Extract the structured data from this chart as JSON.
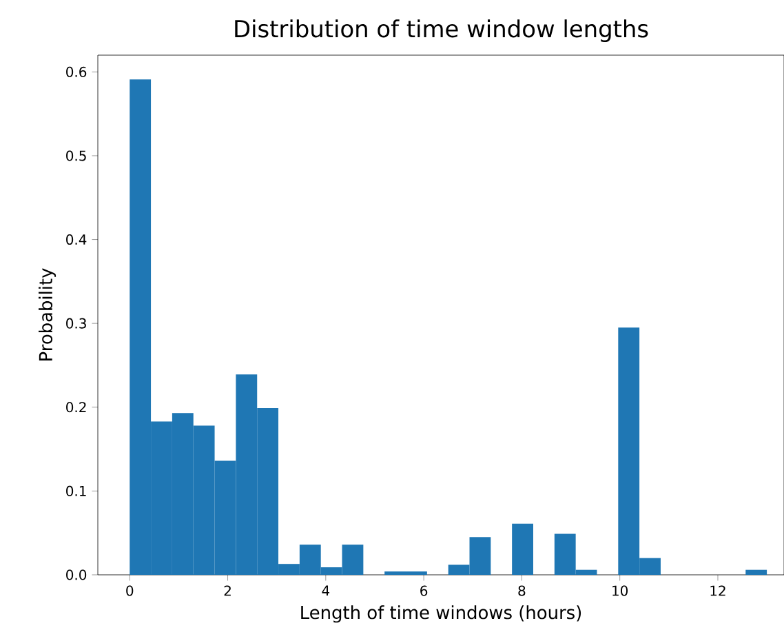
{
  "chart_data": {
    "type": "histogram",
    "title": "Distribution of time window lengths",
    "xlabel": "Length of time windows (hours)",
    "ylabel": "Probability",
    "bins": [
      0,
      0.4333,
      0.8667,
      1.3,
      1.7333,
      2.1667,
      2.6,
      3.0333,
      3.4667,
      3.9,
      4.3333,
      4.7667,
      5.2,
      5.6333,
      6.0667,
      6.5,
      6.9333,
      7.3667,
      7.8,
      8.2333,
      8.6667,
      9.1,
      9.5333,
      9.9667,
      10.4,
      10.8333,
      11.2667,
      11.7,
      12.1333,
      12.5667,
      13
    ],
    "values": [
      0.591,
      0.183,
      0.193,
      0.178,
      0.136,
      0.239,
      0.199,
      0.013,
      0.036,
      0.009,
      0.036,
      0,
      0.004,
      0.004,
      0,
      0.012,
      0.045,
      0,
      0.061,
      0,
      0.049,
      0.006,
      0,
      0.295,
      0.02,
      0,
      0,
      0,
      0,
      0.006
    ],
    "color": "#1f77b4",
    "xlim": [
      -0.65,
      13.35
    ],
    "ylim": [
      0,
      0.62
    ],
    "xticks": [
      0,
      2,
      4,
      6,
      8,
      10,
      12
    ],
    "yticks": [
      {
        "value": 0,
        "label": "0.0"
      },
      0.1,
      0.2,
      0.3,
      0.4,
      0.5,
      0.6
    ]
  }
}
